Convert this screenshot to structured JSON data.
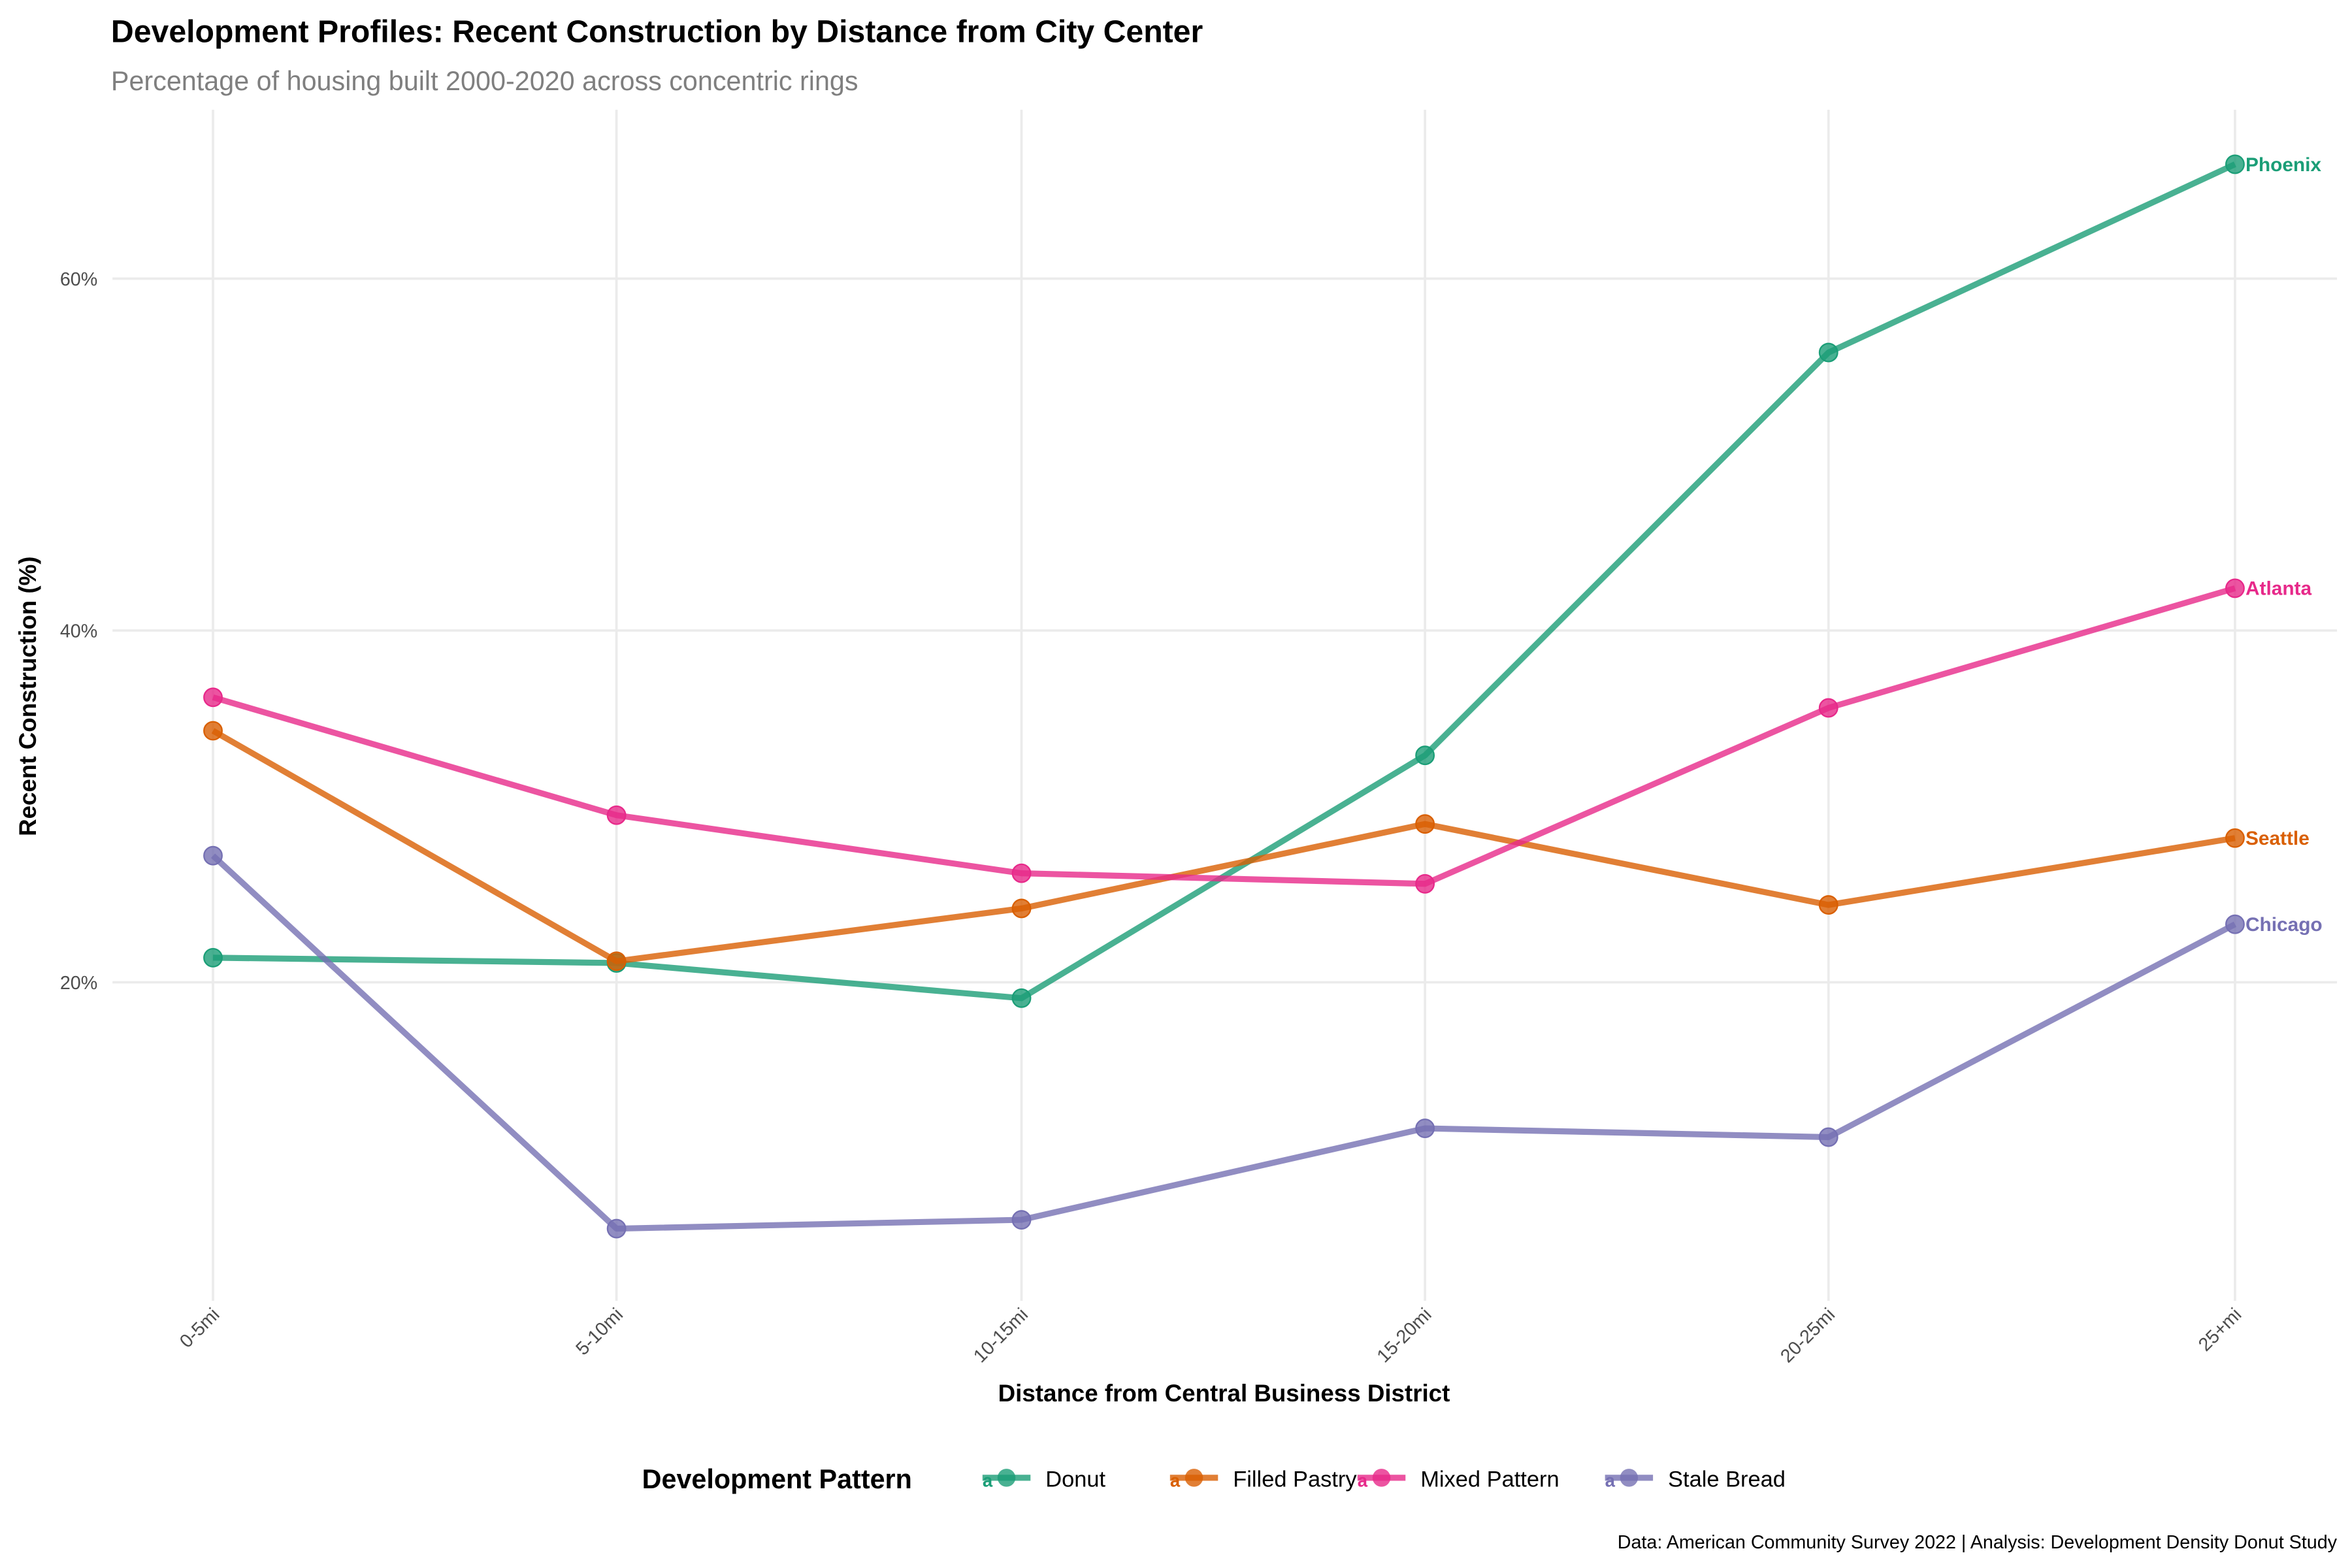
{
  "chart_data": {
    "type": "line",
    "title": "Development Profiles: Recent Construction by Distance from City Center",
    "subtitle": "Percentage of housing built 2000-2020 across concentric rings",
    "xlabel": "Distance from Central Business District",
    "ylabel": "Recent Construction (%)",
    "categories": [
      "0-5mi",
      "5-10mi",
      "10-15mi",
      "15-20mi",
      "20-25mi",
      "25+mi"
    ],
    "yticks": [
      20,
      40,
      60
    ],
    "ytick_labels": [
      "20%",
      "40%",
      "60%"
    ],
    "ylim": [
      1.9,
      69.6
    ],
    "grid": true,
    "legend": {
      "title": "Development Pattern",
      "placement": "bottom",
      "key_glyph": "a"
    },
    "series": [
      {
        "name": "Donut",
        "city": "Phoenix",
        "color": "#1B9E77",
        "values": [
          21.4,
          21.1,
          19.1,
          32.9,
          55.8,
          66.5
        ]
      },
      {
        "name": "Filled Pastry",
        "city": "Seattle",
        "color": "#D95F02",
        "values": [
          34.3,
          21.2,
          24.2,
          29.0,
          24.4,
          28.2
        ]
      },
      {
        "name": "Mixed Pattern",
        "city": "Atlanta",
        "color": "#E7298A",
        "values": [
          36.2,
          29.5,
          26.2,
          25.6,
          35.6,
          42.4
        ]
      },
      {
        "name": "Stale Bread",
        "city": "Chicago",
        "color": "#7570B3",
        "values": [
          27.2,
          6.0,
          6.5,
          11.7,
          11.2,
          23.3
        ]
      }
    ],
    "caption": "Data: American Community Survey 2022 | Analysis: Development Density Donut Study"
  }
}
